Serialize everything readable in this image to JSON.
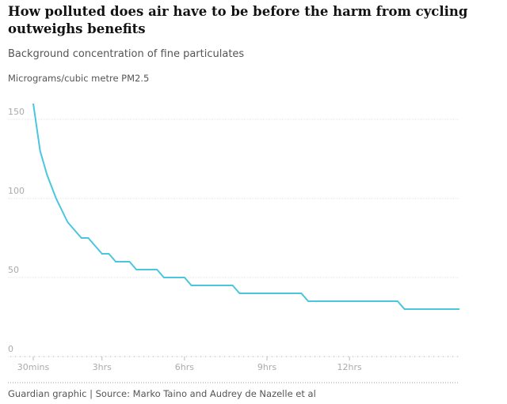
{
  "chart_data": {
    "type": "line",
    "title": "How polluted does air have to be before the harm from cycling outweighs benefits",
    "subtitle": "Background concentration of fine particulates",
    "y_label": "Micrograms/cubic metre PM2.5",
    "source": "Guardian graphic | Source: Marko Taino and Audrey de Nazelle et al",
    "x": [
      0.5,
      0.75,
      1,
      1.33,
      1.75,
      2.25,
      2.5,
      3,
      3.25,
      3.5,
      4,
      4.25,
      5,
      5.25,
      6,
      6.25,
      7.75,
      8,
      10.25,
      10.5,
      13.75,
      14,
      16
    ],
    "series": [
      {
        "color": "#4bc6df",
        "values": [
          160,
          130,
          115,
          100,
          85,
          75,
          75,
          65,
          65,
          60,
          60,
          55,
          55,
          50,
          50,
          45,
          45,
          40,
          40,
          35,
          35,
          30,
          30
        ]
      }
    ],
    "xlim": [
      0.5,
      16
    ],
    "ylim": [
      0,
      160
    ],
    "xticks": [
      {
        "value": 0.5,
        "label": "30mins"
      },
      {
        "value": 3,
        "label": "3hrs"
      },
      {
        "value": 6,
        "label": "6hrs"
      },
      {
        "value": 9,
        "label": "9hrs"
      },
      {
        "value": 12,
        "label": "12hrs"
      }
    ],
    "yticks": [
      0,
      50,
      100,
      150
    ],
    "grid": true
  }
}
